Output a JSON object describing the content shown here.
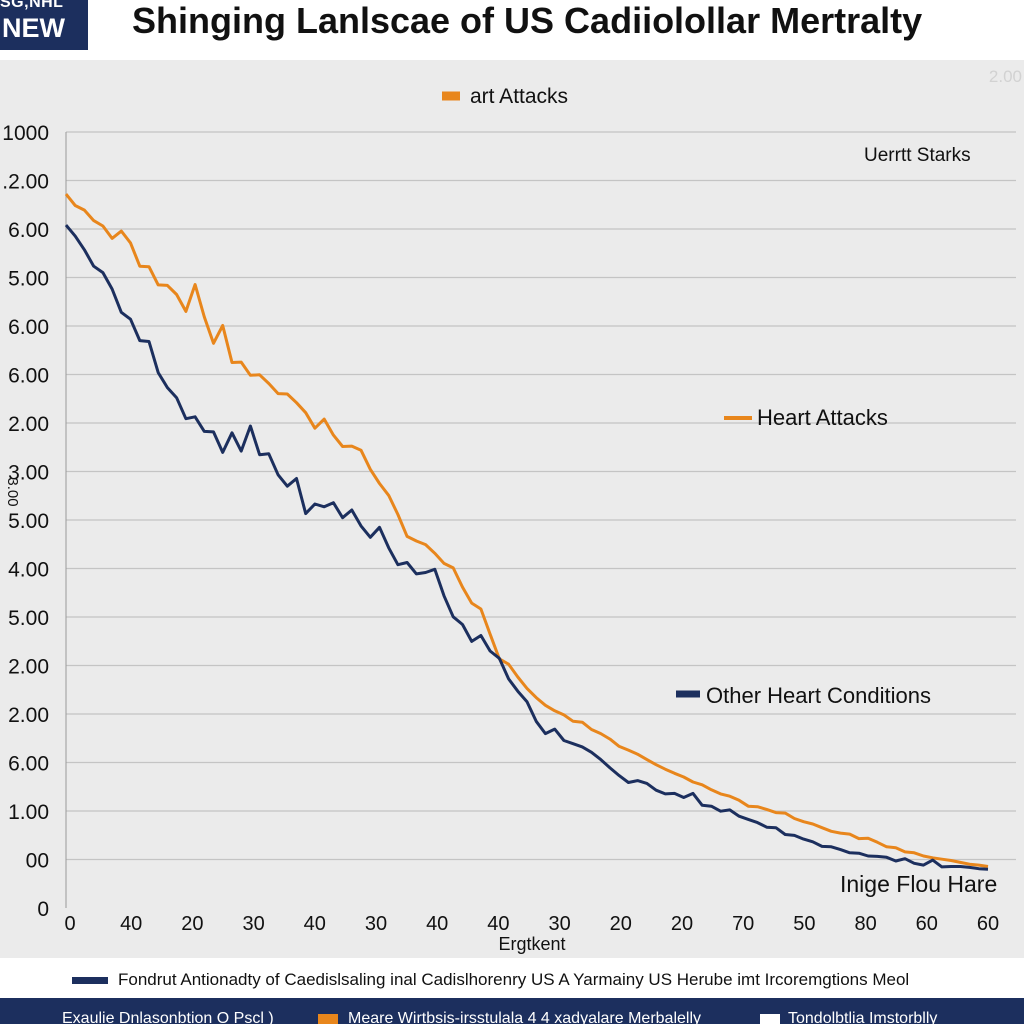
{
  "header": {
    "badge_line1": "SG,NHL",
    "badge_line2": "NEW",
    "title": "Shinging Lanlscae of US  Cadiiolollar Mertralty"
  },
  "colors": {
    "navy": "#1c2f5e",
    "orange": "#e8861c",
    "grid": "#c4c4c4",
    "panel": "#ebebeb"
  },
  "chart_data": {
    "type": "line",
    "title": "Shinging Lanlscae of US  Cadiiolollar Mertralty",
    "corner_label": "2.00",
    "ytick_labels": [
      "1000",
      ".2.00",
      "6.00",
      "5.00",
      "6.00",
      "6.00",
      "2.00",
      "3.00",
      "5.00",
      "4.00",
      "5.00",
      "2.00",
      "2.00",
      "6.00",
      "1.00",
      "00",
      "0"
    ],
    "xtick_labels": [
      "0",
      "40",
      "20",
      "30",
      "40",
      "30",
      "40",
      "40",
      "30",
      "20",
      "20",
      "70",
      "50",
      "80",
      "60",
      "60"
    ],
    "xlabel": "Ergtkent",
    "ylabel": "3.00",
    "x": [
      0,
      1,
      2,
      3,
      4,
      5,
      6,
      7,
      8,
      9,
      10,
      11,
      12,
      13,
      14,
      15,
      16,
      17,
      18,
      19,
      20,
      21,
      22,
      23,
      24,
      25,
      26,
      27,
      28,
      29,
      30,
      31,
      32,
      33,
      34,
      35,
      36,
      37,
      38,
      39,
      40,
      41,
      42,
      43,
      44,
      45,
      46,
      47,
      48,
      49,
      50,
      51,
      52,
      53,
      54,
      55,
      56,
      57,
      58,
      59,
      60,
      61,
      62,
      63,
      64,
      65,
      66,
      67,
      68,
      69,
      70,
      71,
      72,
      73,
      74,
      75,
      76,
      77,
      78,
      79,
      80,
      81,
      82,
      83,
      84,
      85,
      86,
      87,
      88,
      89,
      90,
      91,
      92,
      93,
      94,
      95,
      96,
      97,
      98,
      99,
      100
    ],
    "series": [
      {
        "name": "Heart Attacks",
        "color": "#e8861c",
        "values": [
          15.64,
          15.39,
          15.29,
          15.06,
          14.94,
          14.67,
          14.83,
          14.57,
          14.06,
          14.05,
          13.65,
          13.64,
          13.44,
          13.07,
          13.66,
          12.95,
          12.37,
          12.76,
          11.95,
          11.96,
          11.67,
          11.68,
          11.49,
          11.27,
          11.26,
          11.07,
          10.85,
          10.51,
          10.71,
          10.36,
          10.11,
          10.12,
          10.03,
          9.61,
          9.3,
          9.04,
          8.62,
          8.14,
          8.04,
          7.96,
          7.77,
          7.55,
          7.45,
          7.03,
          6.68,
          6.55,
          6.0,
          5.46,
          5.34,
          5.06,
          4.81,
          4.61,
          4.44,
          4.32,
          4.23,
          4.09,
          4.07,
          3.91,
          3.82,
          3.7,
          3.54,
          3.46,
          3.37,
          3.25,
          3.14,
          3.04,
          2.95,
          2.87,
          2.76,
          2.7,
          2.59,
          2.5,
          2.45,
          2.36,
          2.23,
          2.22,
          2.16,
          2.09,
          2.08,
          1.96,
          1.89,
          1.84,
          1.76,
          1.68,
          1.64,
          1.62,
          1.52,
          1.53,
          1.44,
          1.34,
          1.32,
          1.23,
          1.21,
          1.14,
          1.1,
          1.07,
          1.04,
          1.0,
          0.96,
          0.94,
          0.91
        ]
      },
      {
        "name": "Other Heart Conditions",
        "color": "#1c2f5e",
        "values": [
          14.96,
          14.72,
          14.42,
          14.06,
          13.92,
          13.56,
          13.05,
          12.9,
          12.43,
          12.41,
          11.73,
          11.4,
          11.18,
          10.72,
          10.76,
          10.44,
          10.43,
          9.98,
          10.41,
          10.01,
          10.56,
          9.93,
          9.95,
          9.49,
          9.24,
          9.41,
          8.64,
          8.85,
          8.79,
          8.88,
          8.55,
          8.72,
          8.37,
          8.12,
          8.34,
          7.89,
          7.52,
          7.57,
          7.32,
          7.35,
          7.42,
          6.84,
          6.38,
          6.21,
          5.84,
          5.97,
          5.63,
          5.47,
          5.02,
          4.75,
          4.52,
          4.09,
          3.82,
          3.92,
          3.67,
          3.6,
          3.53,
          3.41,
          3.25,
          3.07,
          2.9,
          2.75,
          2.79,
          2.73,
          2.58,
          2.5,
          2.51,
          2.42,
          2.51,
          2.25,
          2.23,
          2.12,
          2.15,
          2.01,
          1.94,
          1.87,
          1.77,
          1.76,
          1.61,
          1.59,
          1.51,
          1.45,
          1.35,
          1.34,
          1.28,
          1.21,
          1.2,
          1.14,
          1.13,
          1.11,
          1.03,
          1.08,
          0.98,
          0.94,
          1.05,
          0.9,
          0.91,
          0.91,
          0.89,
          0.86,
          0.85
        ]
      }
    ],
    "ylim": [
      0,
      17
    ],
    "legend": [
      {
        "label": "art Attacks",
        "color": "#e8861c",
        "position": "top-center"
      },
      {
        "label": "Uerrtt Starks",
        "position": "top-right"
      },
      {
        "label": "Heart Attacks",
        "color": "#e8861c",
        "position": "middle-right"
      },
      {
        "label": "Other Heart Conditions",
        "color": "#1c2f5e",
        "position": "lower-right"
      },
      {
        "label": "Inige Flou Hare",
        "position": "bottom-right"
      }
    ]
  },
  "footnote": {
    "text": "Fondrut Antionadty of Caedislsaling inal Cadislhorenry US A Yarmainy US Herube imt Ircoremgtions Meol"
  },
  "bottom_bar": {
    "item1": "Exaulie Dnlasonbtion O Pscl )",
    "item2": "Meare Wirtbsis-irsstulala 4 4 xadyalare Merbalelly",
    "item3": "Tondolbtlia Imstorblly"
  }
}
